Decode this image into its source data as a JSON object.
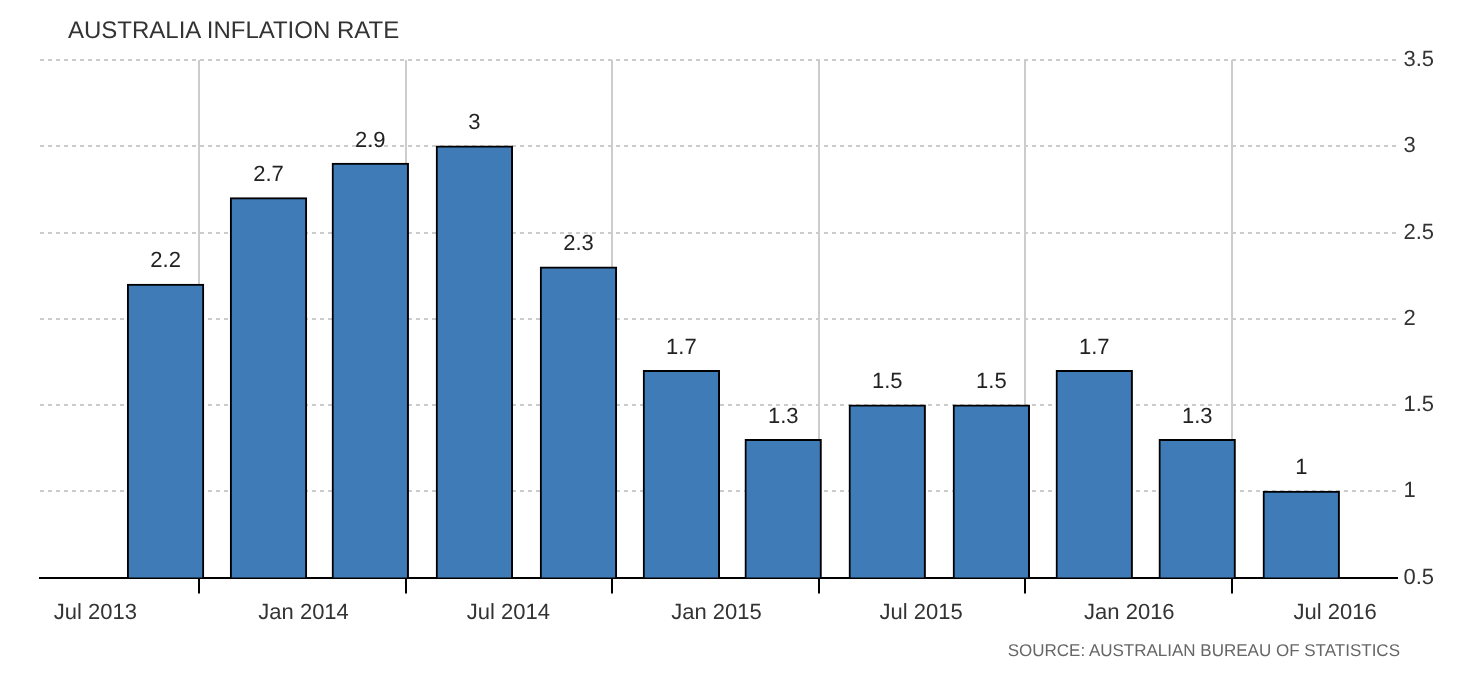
{
  "chart_data": {
    "type": "bar",
    "title": "AUSTRALIA INFLATION RATE",
    "x": [
      "2013-09",
      "2013-12",
      "2014-03",
      "2014-06",
      "2014-09",
      "2014-12",
      "2015-03",
      "2015-06",
      "2015-09",
      "2015-12",
      "2016-03",
      "2016-06"
    ],
    "values": [
      2.2,
      2.7,
      2.9,
      3,
      2.3,
      1.7,
      1.3,
      1.5,
      1.5,
      1.7,
      1.3,
      1
    ],
    "color": "#3f7bb6",
    "xlim": [
      "2013-05-13",
      "2016-08-25"
    ],
    "xticks": [
      {
        "value": "2013-07",
        "label": "Jul 2013"
      },
      {
        "value": "2014-01",
        "label": "Jan 2014"
      },
      {
        "value": "2014-07",
        "label": "Jul 2014"
      },
      {
        "value": "2015-01",
        "label": "Jan 2015"
      },
      {
        "value": "2015-07",
        "label": "Jul 2015"
      },
      {
        "value": "2016-01",
        "label": "Jan 2016"
      },
      {
        "value": "2016-07",
        "label": "Jul 2016"
      }
    ],
    "ylim": [
      0.5,
      3.5
    ],
    "yticks": [
      0.5,
      1,
      1.5,
      2,
      2.5,
      3,
      3.5
    ],
    "grid": true,
    "data_labels": true,
    "annotations": [
      "SOURCE: AUSTRALIAN BUREAU OF STATISTICS"
    ]
  }
}
